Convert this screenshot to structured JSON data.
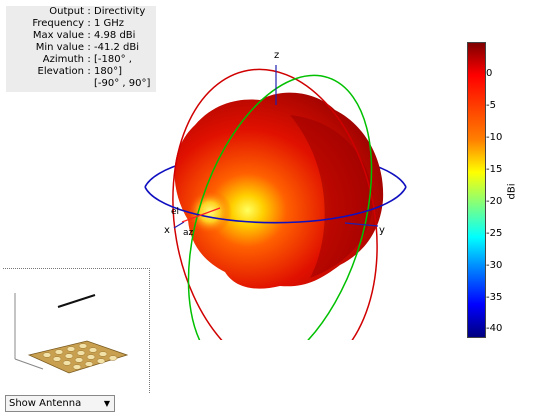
{
  "info": {
    "rows": [
      {
        "key": "Output",
        "val": "Directivity"
      },
      {
        "key": "Frequency",
        "val": "1 GHz"
      },
      {
        "key": "Max value",
        "val": "4.98 dBi"
      },
      {
        "key": "Min value",
        "val": "-41.2 dBi"
      },
      {
        "key": "Azimuth",
        "val": "[-180° ,"
      },
      {
        "key": "Elevation",
        "val": "180°]"
      },
      {
        "key": "",
        "val": "[-90° , 90°]"
      }
    ]
  },
  "axes": {
    "x": "x",
    "y": "y",
    "z": "z",
    "el": "el",
    "az": "az"
  },
  "colorbar": {
    "unit": "dBi",
    "ticks": [
      "0",
      "-5",
      "-10",
      "-15",
      "-20",
      "-25",
      "-30",
      "-35",
      "-40"
    ]
  },
  "dropdown": {
    "selected": "Show Antenna"
  }
}
